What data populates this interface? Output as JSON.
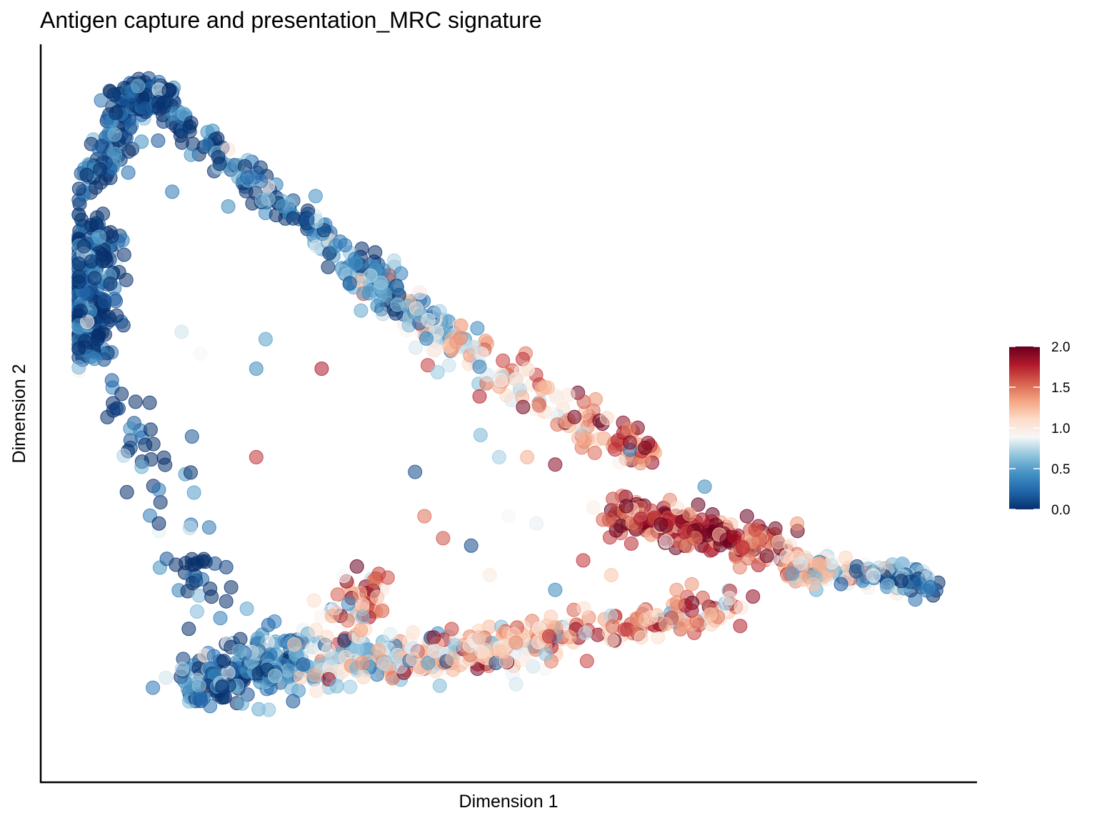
{
  "chart_data": {
    "type": "scatter",
    "title": "Antigen capture and presentation_MRC signature",
    "xlabel": "Dimension 1",
    "ylabel": "Dimension 2",
    "axis_ticks": "none",
    "grid": false,
    "legend_placement": "right",
    "color_scale": {
      "palette": "RdBu (reversed)",
      "domain": [
        0.0,
        2.0
      ],
      "ticks": [
        "0.0",
        "0.5",
        "1.0",
        "1.5",
        "2.0"
      ],
      "stops": [
        "#08306b",
        "#2166ac",
        "#4393c3",
        "#92c5de",
        "#f7f7f7",
        "#fddbc7",
        "#f4a582",
        "#d6604d",
        "#b2182b",
        "#67001f"
      ]
    },
    "point_opacity": 0.55,
    "xlim": [
      0,
      100
    ],
    "ylim": [
      0,
      100
    ],
    "trajectory_segments": [
      {
        "name": "upper-left-cluster",
        "from": [
          5,
          75
        ],
        "to": [
          5,
          58
        ],
        "score_from": 0.05,
        "score_to": 0.15,
        "n": 260,
        "jitter": 1.6
      },
      {
        "name": "upper-left-arc",
        "from": [
          5,
          80
        ],
        "to": [
          10,
          93
        ],
        "score_from": 0.05,
        "score_to": 0.1,
        "n": 110,
        "jitter": 1.2
      },
      {
        "name": "top-dense",
        "from": [
          9,
          93
        ],
        "to": [
          13,
          93
        ],
        "score_from": 0.05,
        "score_to": 0.1,
        "n": 120,
        "jitter": 1.0
      },
      {
        "name": "upper-arm",
        "from": [
          13,
          91
        ],
        "to": [
          34,
          70
        ],
        "score_from": 0.1,
        "score_to": 0.35,
        "n": 140,
        "jitter": 1.0
      },
      {
        "name": "upper-arm-mid",
        "from": [
          34,
          70
        ],
        "to": [
          44,
          59
        ],
        "score_from": 0.3,
        "score_to": 0.9,
        "n": 130,
        "jitter": 1.3
      },
      {
        "name": "middle-descent",
        "from": [
          44,
          59
        ],
        "to": [
          65,
          44
        ],
        "score_from": 1.0,
        "score_to": 1.5,
        "n": 130,
        "jitter": 1.4
      },
      {
        "name": "middle-red-cluster",
        "from": [
          60,
          37
        ],
        "to": [
          80,
          31
        ],
        "score_from": 1.85,
        "score_to": 1.6,
        "n": 230,
        "jitter": 1.3
      },
      {
        "name": "right-tail",
        "from": [
          80,
          29
        ],
        "to": [
          95,
          27
        ],
        "score_from": 1.3,
        "score_to": 0.15,
        "n": 170,
        "jitter": 0.9
      },
      {
        "name": "lower-left-descent",
        "from": [
          8,
          52
        ],
        "to": [
          19,
          23
        ],
        "score_from": 0.05,
        "score_to": 0.1,
        "n": 70,
        "jitter": 1.7
      },
      {
        "name": "lower-left-cluster",
        "from": [
          16,
          13
        ],
        "to": [
          28,
          17
        ],
        "score_from": 0.15,
        "score_to": 0.5,
        "n": 210,
        "jitter": 2.0
      },
      {
        "name": "lower-branch",
        "from": [
          28,
          17
        ],
        "to": [
          55,
          18
        ],
        "score_from": 0.6,
        "score_to": 1.3,
        "n": 170,
        "jitter": 1.7
      },
      {
        "name": "lower-arm",
        "from": [
          28,
          14
        ],
        "to": [
          75,
          24
        ],
        "score_from": 0.9,
        "score_to": 1.45,
        "n": 220,
        "jitter": 1.2
      },
      {
        "name": "lower-fork",
        "from": [
          32,
          20
        ],
        "to": [
          36,
          27
        ],
        "score_from": 1.0,
        "score_to": 1.6,
        "n": 60,
        "jitter": 1.6
      }
    ],
    "scattered_points": [
      {
        "x": 14,
        "y": 80,
        "score": 0.3
      },
      {
        "x": 20,
        "y": 78,
        "score": 0.4
      },
      {
        "x": 15,
        "y": 61,
        "score": 0.8
      },
      {
        "x": 24,
        "y": 60,
        "score": 0.5
      },
      {
        "x": 17,
        "y": 58,
        "score": 0.9
      },
      {
        "x": 23,
        "y": 56,
        "score": 0.4
      },
      {
        "x": 30,
        "y": 56,
        "score": 1.8
      },
      {
        "x": 23,
        "y": 44,
        "score": 1.7
      },
      {
        "x": 47,
        "y": 47,
        "score": 0.6
      },
      {
        "x": 49,
        "y": 44,
        "score": 0.7
      },
      {
        "x": 55,
        "y": 43,
        "score": 1.9
      },
      {
        "x": 52,
        "y": 44,
        "score": 1.3
      },
      {
        "x": 50,
        "y": 36,
        "score": 0.9
      },
      {
        "x": 53,
        "y": 35,
        "score": 0.85
      },
      {
        "x": 41,
        "y": 36,
        "score": 1.5
      },
      {
        "x": 43,
        "y": 33,
        "score": 1.6
      },
      {
        "x": 46,
        "y": 32,
        "score": 0.1
      },
      {
        "x": 58,
        "y": 30,
        "score": 1.7
      },
      {
        "x": 55,
        "y": 26,
        "score": 0.4
      },
      {
        "x": 61,
        "y": 28,
        "score": 1.2
      },
      {
        "x": 63,
        "y": 45,
        "score": 0.3
      },
      {
        "x": 71,
        "y": 40,
        "score": 0.4
      },
      {
        "x": 68,
        "y": 26,
        "score": 1.4
      },
      {
        "x": 63,
        "y": 46,
        "score": 1.9
      },
      {
        "x": 40,
        "y": 42,
        "score": 0.1
      },
      {
        "x": 48,
        "y": 28,
        "score": 1.0
      }
    ]
  }
}
